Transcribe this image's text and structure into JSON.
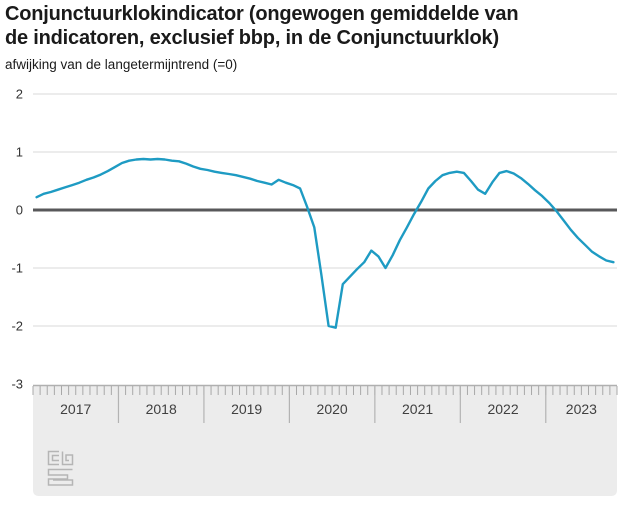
{
  "title": {
    "line1": "Conjunctuurklokindicator (ongewogen gemiddelde van",
    "line2": "de indicatoren, exclusief bbp, in de Conjunctuurklok)"
  },
  "subtitle": "afwijking van de langetermijntrend (=0)",
  "logo_name": "cbs-logo",
  "colors": {
    "line": "#1e9bc3",
    "zero_line": "#58585a",
    "gridline": "#d9d9d9",
    "band_bg": "#ececec",
    "band_border": "#b0b0b0",
    "tick": "#a8a8a8",
    "separator": "#b3b3b3",
    "year_label": "#404040",
    "axis_label": "#333333",
    "title": "#1a1a1a",
    "logo": "#b5b5b5"
  },
  "chart_data": {
    "type": "line",
    "title": "Conjunctuurklokindicator (ongewogen gemiddelde van de indicatoren, exclusief bbp, in de Conjunctuurklok)",
    "ylabel": "afwijking van de langetermijntrend (=0)",
    "xlabel": "",
    "x_start": "2017-01",
    "x_end": "2023-10",
    "ylim": [
      -3,
      2
    ],
    "y_ticks": [
      2,
      1,
      0,
      -1,
      -2,
      -3
    ],
    "y_tick_labels": [
      "2",
      "1",
      "0",
      "-1",
      "-2",
      "-3"
    ],
    "zero_line": true,
    "grid": "horizontal",
    "legend": "none",
    "year_labels": [
      "2017",
      "2018",
      "2019",
      "2020",
      "2021",
      "2022",
      "2023"
    ],
    "year_month_counts": [
      12,
      12,
      12,
      12,
      12,
      12,
      10
    ],
    "series": [
      {
        "name": "Conjunctuurklokindicator (excl. bbp)",
        "values": [
          0.22,
          0.28,
          0.31,
          0.35,
          0.39,
          0.43,
          0.47,
          0.52,
          0.56,
          0.61,
          0.67,
          0.74,
          0.81,
          0.85,
          0.87,
          0.88,
          0.87,
          0.88,
          0.87,
          0.85,
          0.84,
          0.8,
          0.75,
          0.71,
          0.69,
          0.66,
          0.64,
          0.62,
          0.6,
          0.57,
          0.54,
          0.5,
          0.47,
          0.44,
          0.52,
          0.47,
          0.43,
          0.37,
          0.05,
          -0.3,
          -1.12,
          -2.0,
          -2.03,
          -1.28,
          -1.15,
          -1.02,
          -0.9,
          -0.7,
          -0.8,
          -1.0,
          -0.78,
          -0.52,
          -0.3,
          -0.07,
          0.14,
          0.37,
          0.5,
          0.6,
          0.64,
          0.66,
          0.64,
          0.5,
          0.35,
          0.28,
          0.48,
          0.64,
          0.67,
          0.63,
          0.55,
          0.45,
          0.34,
          0.24,
          0.12,
          -0.02,
          -0.18,
          -0.34,
          -0.48,
          -0.6,
          -0.72,
          -0.8,
          -0.87,
          -0.9
        ]
      }
    ]
  }
}
